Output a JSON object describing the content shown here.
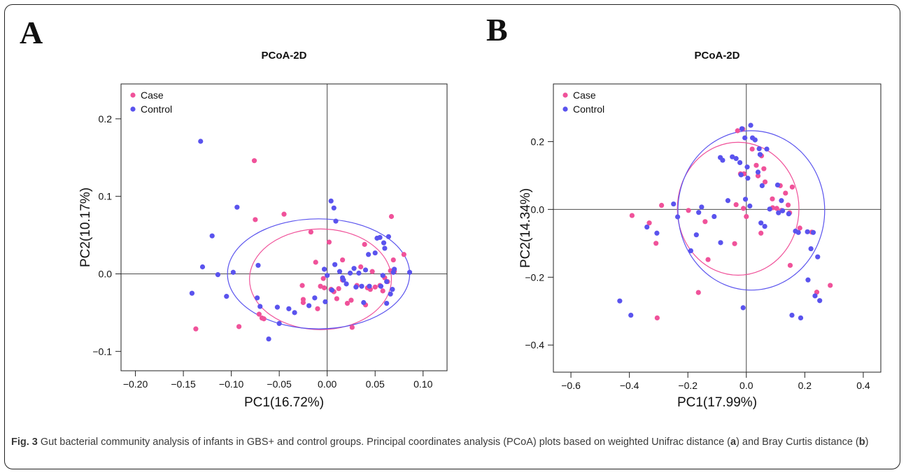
{
  "figure": {
    "caption_label": "Fig. 3",
    "caption_text_1": " Gut bacterial community analysis of infants in GBS+ and control groups. Principal coordinates analysis (PCoA) plots based on weighted Unifrac distance (",
    "caption_a": "a",
    "caption_text_2": ") and Bray Curtis distance (",
    "caption_b": "b",
    "caption_text_3": ")"
  },
  "colors": {
    "case": "#f0529a",
    "control": "#5a53ee"
  },
  "chart_data": [
    {
      "panel_label": "A",
      "type": "scatter",
      "title": "PCoA-2D",
      "xlabel": "PC1(16.72%)",
      "ylabel": "PC2(10.17%)",
      "xlim": [
        -0.215,
        0.125
      ],
      "ylim": [
        -0.125,
        0.245
      ],
      "xticks": [
        -0.2,
        -0.15,
        -0.1,
        -0.05,
        0.0,
        0.05,
        0.1
      ],
      "xtick_labels": [
        "−0.20",
        "−0.15",
        "−0.10",
        "−0.05",
        "0.00",
        "0.05",
        "0.10"
      ],
      "yticks": [
        -0.1,
        0.0,
        0.1,
        0.2
      ],
      "ytick_labels": [
        "−0.1",
        "0.0",
        "0.1",
        "0.2"
      ],
      "grid": false,
      "zero_lines": true,
      "legend": "top-left",
      "series": [
        {
          "name": "Case",
          "color": "#f0529a",
          "points": [
            [
              -0.076,
              0.146
            ],
            [
              -0.075,
              0.07
            ],
            [
              -0.137,
              -0.071
            ],
            [
              -0.092,
              -0.068
            ],
            [
              -0.045,
              0.077
            ],
            [
              -0.017,
              0.054
            ],
            [
              -0.068,
              -0.057
            ],
            [
              -0.066,
              -0.058
            ],
            [
              -0.071,
              -0.052
            ],
            [
              -0.026,
              -0.015
            ],
            [
              -0.025,
              -0.033
            ],
            [
              -0.025,
              -0.037
            ],
            [
              -0.01,
              -0.045
            ],
            [
              -0.007,
              -0.016
            ],
            [
              -0.003,
              -0.018
            ],
            [
              0.002,
              0.041
            ],
            [
              0.004,
              -0.02
            ],
            [
              0.007,
              -0.023
            ],
            [
              0.012,
              -0.019
            ],
            [
              0.016,
              -0.008
            ],
            [
              0.016,
              0.018
            ],
            [
              0.021,
              -0.038
            ],
            [
              0.025,
              -0.034
            ],
            [
              0.026,
              -0.069
            ],
            [
              0.031,
              -0.015
            ],
            [
              0.035,
              0.009
            ],
            [
              0.039,
              0.038
            ],
            [
              0.04,
              -0.04
            ],
            [
              0.042,
              -0.018
            ],
            [
              0.045,
              -0.02
            ],
            [
              0.05,
              -0.017
            ],
            [
              0.055,
              -0.015
            ],
            [
              0.058,
              -0.022
            ],
            [
              0.06,
              -0.005
            ],
            [
              0.063,
              -0.01
            ],
            [
              0.066,
              0.004
            ],
            [
              0.067,
              0.074
            ],
            [
              0.069,
              0.018
            ],
            [
              0.07,
              0.003
            ],
            [
              0.08,
              0.025
            ],
            [
              -0.004,
              -0.006
            ],
            [
              0.01,
              -0.032
            ],
            [
              -0.012,
              0.015
            ],
            [
              0.047,
              0.003
            ]
          ]
        },
        {
          "name": "Control",
          "color": "#5a53ee",
          "points": [
            [
              -0.132,
              0.171
            ],
            [
              -0.094,
              0.086
            ],
            [
              -0.12,
              0.049
            ],
            [
              -0.13,
              0.009
            ],
            [
              -0.114,
              -0.001
            ],
            [
              -0.141,
              -0.025
            ],
            [
              -0.105,
              -0.029
            ],
            [
              -0.098,
              0.002
            ],
            [
              -0.073,
              -0.031
            ],
            [
              -0.07,
              -0.042
            ],
            [
              -0.072,
              0.011
            ],
            [
              -0.052,
              -0.043
            ],
            [
              -0.05,
              -0.064
            ],
            [
              -0.061,
              -0.084
            ],
            [
              -0.034,
              -0.05
            ],
            [
              -0.019,
              -0.041
            ],
            [
              -0.013,
              -0.031
            ],
            [
              -0.002,
              -0.036
            ],
            [
              0.004,
              0.094
            ],
            [
              0.007,
              0.085
            ],
            [
              0.009,
              0.068
            ],
            [
              0.008,
              0.012
            ],
            [
              0.013,
              0.003
            ],
            [
              0.016,
              -0.005
            ],
            [
              0.017,
              -0.008
            ],
            [
              0.02,
              -0.013
            ],
            [
              0.024,
              0.001
            ],
            [
              0.03,
              -0.017
            ],
            [
              0.033,
              0.001
            ],
            [
              0.036,
              -0.016
            ],
            [
              0.038,
              -0.037
            ],
            [
              0.04,
              0.005
            ],
            [
              0.043,
              0.025
            ],
            [
              0.044,
              -0.016
            ],
            [
              0.05,
              0.027
            ],
            [
              0.052,
              0.046
            ],
            [
              0.055,
              0.047
            ],
            [
              0.056,
              -0.016
            ],
            [
              0.058,
              -0.002
            ],
            [
              0.059,
              0.04
            ],
            [
              0.06,
              0.033
            ],
            [
              0.062,
              -0.01
            ],
            [
              0.064,
              0.048
            ],
            [
              0.062,
              -0.038
            ],
            [
              0.066,
              -0.026
            ],
            [
              0.068,
              -0.02
            ],
            [
              0.07,
              0.006
            ],
            [
              0.069,
              0.002
            ],
            [
              0.086,
              0.002
            ],
            [
              -0.003,
              0.006
            ],
            [
              0.005,
              -0.021
            ],
            [
              0.028,
              0.007
            ],
            [
              -0.04,
              -0.045
            ],
            [
              0.0,
              -0.002
            ]
          ]
        }
      ],
      "ellipses": [
        {
          "series": "Case",
          "cx": -0.007,
          "cy": -0.007,
          "rx": 0.074,
          "ry": 0.065
        },
        {
          "series": "Control",
          "cx": -0.009,
          "cy": 0.0,
          "rx": 0.095,
          "ry": 0.071
        }
      ]
    },
    {
      "panel_label": "B",
      "type": "scatter",
      "title": "PCoA-2D",
      "xlabel": "PC1(17.99%)",
      "ylabel": "PC2(14.34%)",
      "xlim": [
        -0.66,
        0.46
      ],
      "ylim": [
        -0.48,
        0.37
      ],
      "xticks": [
        -0.6,
        -0.4,
        -0.2,
        0.0,
        0.2,
        0.4
      ],
      "xtick_labels": [
        "−0.6",
        "−0.4",
        "−0.2",
        "0.0",
        "0.2",
        "0.4"
      ],
      "yticks": [
        -0.4,
        -0.2,
        0.0,
        0.2
      ],
      "ytick_labels": [
        "−0.4",
        "−0.2",
        "0.0",
        "0.2"
      ],
      "grid": false,
      "zero_lines": true,
      "legend": "top-left",
      "series": [
        {
          "name": "Case",
          "color": "#f0529a",
          "points": [
            [
              -0.391,
              -0.018
            ],
            [
              -0.332,
              -0.04
            ],
            [
              -0.309,
              -0.1
            ],
            [
              -0.29,
              0.012
            ],
            [
              -0.305,
              -0.32
            ],
            [
              -0.198,
              -0.003
            ],
            [
              -0.164,
              -0.245
            ],
            [
              -0.141,
              -0.036
            ],
            [
              -0.131,
              -0.148
            ],
            [
              -0.04,
              -0.101
            ],
            [
              -0.035,
              0.014
            ],
            [
              -0.02,
              0.105
            ],
            [
              -0.008,
              0.105
            ],
            [
              -0.012,
              0.237
            ],
            [
              -0.03,
              0.232
            ],
            [
              -0.01,
              0.003
            ],
            [
              0.0,
              -0.021
            ],
            [
              0.02,
              0.178
            ],
            [
              0.034,
              0.13
            ],
            [
              0.04,
              0.099
            ],
            [
              0.052,
              0.158
            ],
            [
              0.06,
              0.12
            ],
            [
              0.064,
              0.081
            ],
            [
              0.089,
              0.031
            ],
            [
              0.09,
              0.005
            ],
            [
              0.104,
              0.003
            ],
            [
              0.116,
              0.07
            ],
            [
              0.12,
              -0.003
            ],
            [
              0.134,
              0.048
            ],
            [
              0.143,
              0.013
            ],
            [
              0.148,
              -0.01
            ],
            [
              0.157,
              0.066
            ],
            [
              0.15,
              -0.165
            ],
            [
              0.183,
              -0.055
            ],
            [
              0.224,
              -0.067
            ],
            [
              0.241,
              -0.244
            ],
            [
              0.287,
              -0.224
            ],
            [
              0.05,
              -0.07
            ]
          ]
        },
        {
          "name": "Control",
          "color": "#5a53ee",
          "points": [
            [
              -0.433,
              -0.27
            ],
            [
              -0.395,
              -0.312
            ],
            [
              -0.34,
              -0.052
            ],
            [
              -0.306,
              -0.07
            ],
            [
              -0.249,
              0.016
            ],
            [
              -0.235,
              -0.022
            ],
            [
              -0.19,
              -0.122
            ],
            [
              -0.171,
              -0.075
            ],
            [
              -0.163,
              -0.009
            ],
            [
              -0.153,
              0.007
            ],
            [
              -0.11,
              -0.021
            ],
            [
              -0.089,
              0.153
            ],
            [
              -0.081,
              0.145
            ],
            [
              -0.088,
              -0.098
            ],
            [
              -0.063,
              0.026
            ],
            [
              -0.048,
              0.155
            ],
            [
              -0.035,
              0.15
            ],
            [
              -0.022,
              0.138
            ],
            [
              -0.018,
              0.102
            ],
            [
              -0.015,
              0.238
            ],
            [
              -0.005,
              0.211
            ],
            [
              -0.003,
              0.03
            ],
            [
              -0.011,
              -0.29
            ],
            [
              0.003,
              0.125
            ],
            [
              0.005,
              0.092
            ],
            [
              0.012,
              0.01
            ],
            [
              0.015,
              0.248
            ],
            [
              0.021,
              0.211
            ],
            [
              0.03,
              0.205
            ],
            [
              0.04,
              0.11
            ],
            [
              0.044,
              0.179
            ],
            [
              0.047,
              0.162
            ],
            [
              0.05,
              -0.04
            ],
            [
              0.054,
              0.07
            ],
            [
              0.063,
              -0.05
            ],
            [
              0.07,
              0.178
            ],
            [
              0.08,
              0.001
            ],
            [
              0.107,
              0.072
            ],
            [
              0.11,
              -0.01
            ],
            [
              0.12,
              0.026
            ],
            [
              0.124,
              -0.004
            ],
            [
              0.145,
              -0.013
            ],
            [
              0.168,
              -0.064
            ],
            [
              0.178,
              -0.068
            ],
            [
              0.156,
              -0.312
            ],
            [
              0.186,
              -0.32
            ],
            [
              0.209,
              -0.066
            ],
            [
              0.211,
              -0.208
            ],
            [
              0.221,
              -0.116
            ],
            [
              0.244,
              -0.14
            ],
            [
              0.251,
              -0.269
            ],
            [
              0.235,
              -0.255
            ],
            [
              0.229,
              -0.068
            ]
          ]
        }
      ],
      "ellipses": [
        {
          "series": "Case",
          "cx": -0.028,
          "cy": 0.002,
          "rx": 0.208,
          "ry": 0.196
        },
        {
          "series": "Control",
          "cx": 0.017,
          "cy": -0.003,
          "rx": 0.251,
          "ry": 0.235
        }
      ]
    }
  ]
}
